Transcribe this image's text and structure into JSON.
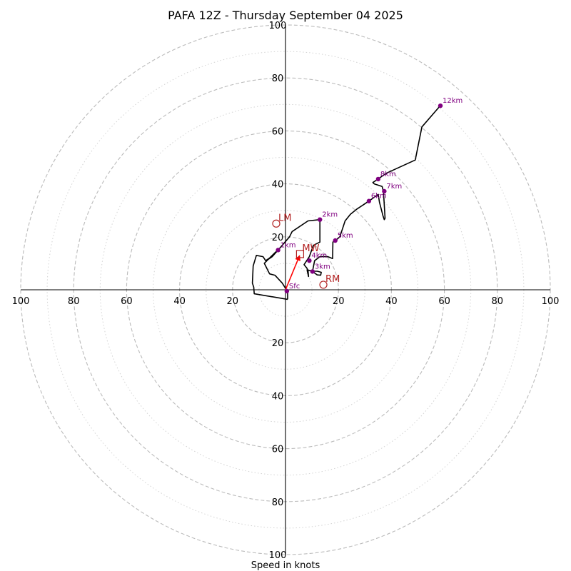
{
  "chart_data": {
    "type": "hodograph",
    "title": "PAFA 12Z - Thursday September 04 2025",
    "xlabel": "Speed in knots",
    "axis_range": [
      -100,
      100
    ],
    "ring_major": [
      20,
      40,
      60,
      80,
      100
    ],
    "ring_minor": [
      10,
      30,
      50,
      70,
      90
    ],
    "axis_ticks": [
      {
        "value": 100,
        "label": "100"
      },
      {
        "value": 80,
        "label": "80"
      },
      {
        "value": 60,
        "label": "60"
      },
      {
        "value": 40,
        "label": "40"
      },
      {
        "value": 20,
        "label": "20"
      }
    ],
    "trace": [
      [
        0.8,
        -3.6
      ],
      [
        0.8,
        -1.0
      ],
      [
        0.5,
        -0.3
      ],
      [
        -1.2,
        2.5
      ],
      [
        -4.0,
        5.5
      ],
      [
        -6.0,
        6.0
      ],
      [
        -8.0,
        10.0
      ],
      [
        -6.5,
        11.5
      ],
      [
        -5.0,
        12.5
      ],
      [
        -2.8,
        15.0
      ],
      [
        -0.2,
        18.0
      ],
      [
        1.5,
        20.0
      ],
      [
        2.5,
        22.0
      ],
      [
        8.5,
        26.0
      ],
      [
        13.0,
        26.5
      ],
      [
        13.0,
        24.0
      ],
      [
        13.0,
        18.0
      ],
      [
        10.5,
        16.8
      ],
      [
        9.0,
        12.5
      ],
      [
        7.0,
        9.5
      ],
      [
        8.2,
        8.0
      ],
      [
        8.2,
        7.2
      ],
      [
        8.7,
        5.0
      ],
      [
        8.5,
        7.5
      ],
      [
        10.0,
        7.0
      ],
      [
        12.0,
        7.0
      ],
      [
        13.5,
        6.6
      ],
      [
        13.3,
        5.5
      ],
      [
        12.0,
        5.6
      ],
      [
        10.2,
        6.9
      ],
      [
        11.0,
        11.0
      ],
      [
        13.0,
        12.5
      ],
      [
        16.0,
        12.5
      ],
      [
        17.8,
        11.8
      ],
      [
        17.9,
        18.0
      ],
      [
        18.8,
        18.6
      ],
      [
        19.0,
        18.7
      ],
      [
        20.5,
        20.0
      ],
      [
        21.5,
        23.0
      ],
      [
        22.5,
        26.0
      ],
      [
        24.5,
        28.5
      ],
      [
        27.0,
        30.5
      ],
      [
        31.5,
        33.5
      ],
      [
        35.0,
        36.0
      ],
      [
        35.5,
        33.0
      ],
      [
        36.8,
        28.0
      ],
      [
        37.3,
        26.5
      ],
      [
        37.6,
        27.0
      ],
      [
        37.0,
        37.0
      ],
      [
        36.5,
        39.0
      ],
      [
        33.5,
        40.0
      ],
      [
        33.0,
        40.5
      ],
      [
        34.5,
        41.5
      ],
      [
        38.0,
        44.0
      ],
      [
        49.0,
        49.0
      ],
      [
        51.5,
        61.5
      ],
      [
        58.0,
        69.0
      ]
    ],
    "trace_left_start": [
      [
        0.8,
        -3.6
      ],
      [
        -11.8,
        -1.5
      ],
      [
        -12.0,
        1.0
      ],
      [
        -12.5,
        2.5
      ],
      [
        -12.2,
        9.0
      ],
      [
        -11.0,
        13.0
      ],
      [
        -8.5,
        12.5
      ],
      [
        -7.5,
        11.0
      ],
      [
        -6.0,
        12.0
      ],
      [
        -4.0,
        14.0
      ],
      [
        -2.8,
        15.0
      ]
    ],
    "height_markers": [
      {
        "label": "Sfc",
        "u": 0.5,
        "v": -0.5
      },
      {
        "label": "1km",
        "u": -2.8,
        "v": 15.0
      },
      {
        "label": "2km",
        "u": 13.0,
        "v": 26.5
      },
      {
        "label": "3km",
        "u": 10.2,
        "v": 6.9
      },
      {
        "label": "4km",
        "u": 9.0,
        "v": 11.0
      },
      {
        "label": "5km",
        "u": 18.8,
        "v": 18.6
      },
      {
        "label": "6km",
        "u": 31.5,
        "v": 33.5
      },
      {
        "label": "7km",
        "u": 37.3,
        "v": 37.2
      },
      {
        "label": "8km",
        "u": 35.0,
        "v": 41.8
      },
      {
        "label": "12km",
        "u": 58.5,
        "v": 69.5
      }
    ],
    "storm_motion": {
      "LM": {
        "label": "LM",
        "u": -3.5,
        "v": 25.0
      },
      "RM": {
        "label": "RM",
        "u": 14.3,
        "v": 1.9
      },
      "MW": {
        "label": "MW",
        "u": 5.5,
        "v": 13.5
      }
    },
    "colors": {
      "trace": "#000000",
      "markers": "#800080",
      "storm": "#b22222",
      "arrow": "#ff0000",
      "ring_major": "#bbbbbb",
      "ring_minor": "#d3d3d3"
    }
  }
}
